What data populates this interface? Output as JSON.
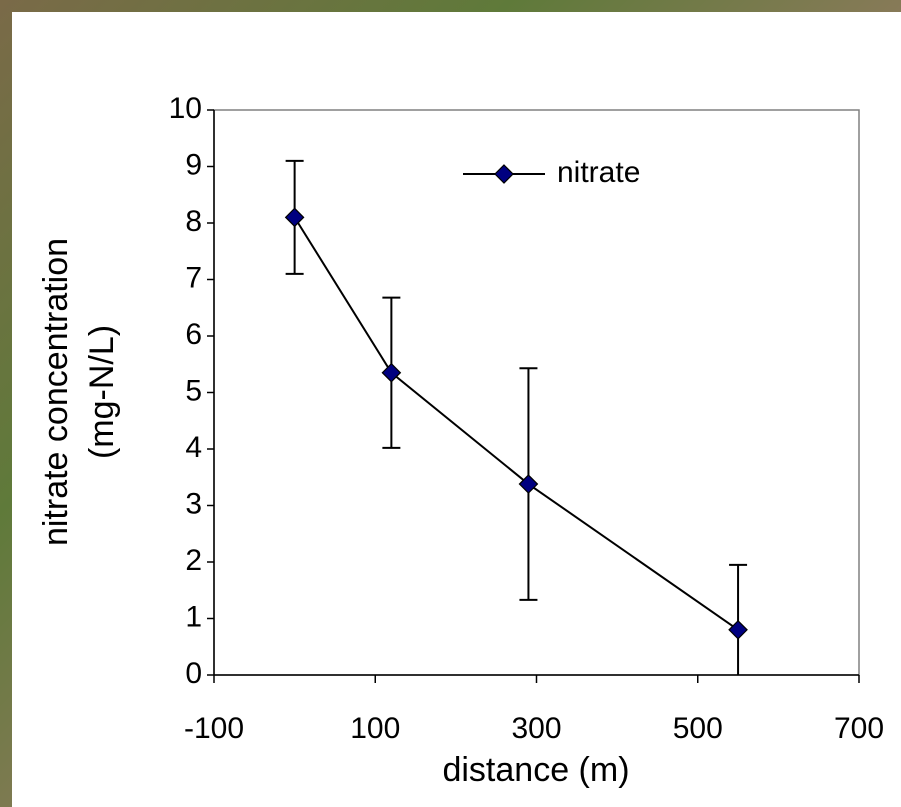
{
  "chart_data": {
    "type": "line",
    "x": [
      0,
      120,
      290,
      550
    ],
    "series": [
      {
        "name": "nitrate",
        "color": "#000080",
        "values": [
          8.1,
          5.35,
          3.38,
          0.8
        ],
        "errors": [
          1.0,
          1.33,
          2.05,
          1.15
        ]
      }
    ],
    "xlim": [
      -100,
      700
    ],
    "xticks": [
      -100,
      100,
      300,
      500,
      700
    ],
    "ylim": [
      0,
      10
    ],
    "yticks": [
      0,
      1,
      2,
      3,
      4,
      5,
      6,
      7,
      8,
      9,
      10
    ],
    "xlabel": "distance (m)",
    "ylabel": [
      "nitrate concentration",
      "(mg-N/L)"
    ]
  }
}
